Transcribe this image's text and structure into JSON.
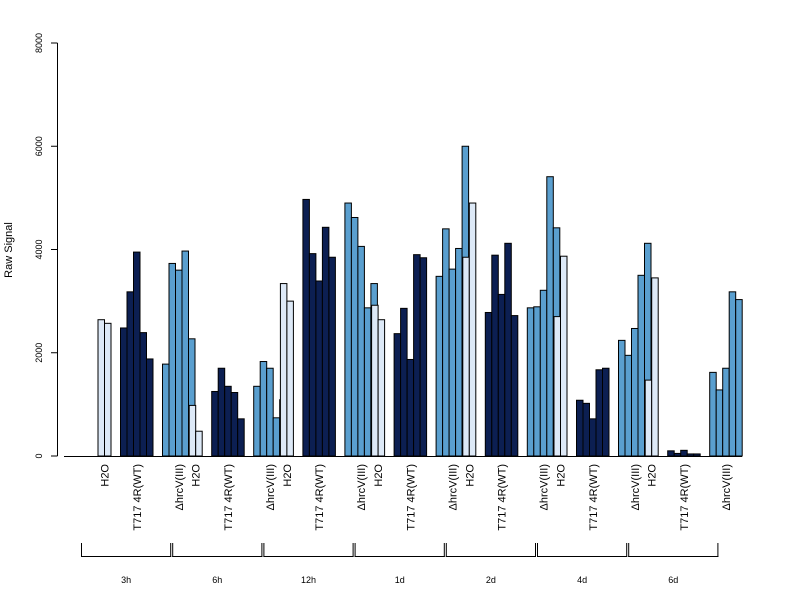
{
  "chart_data": {
    "type": "bar",
    "xlabel": "",
    "ylabel": "Raw Signal",
    "ylim": [
      0,
      8000
    ],
    "y_ticks": [
      0,
      2000,
      4000,
      6000,
      8000
    ],
    "y_tick_labels": [
      "0",
      "2000",
      "4000",
      "6000",
      "8000"
    ],
    "grid": false,
    "legend": "none",
    "treatment_labels": [
      "H2O",
      "T717 4R(WT)",
      "ΔhrcV(III)"
    ],
    "colors": {
      "H2O": "#dde9f7",
      "T717 4R(WT)": "#0c1f52",
      "ΔhrcV(III)": "#5a9fcf"
    },
    "timepoints": [
      {
        "label": "3h",
        "H2O": [
          2640,
          2570
        ],
        "T717 4R(WT)": [
          2480,
          3180,
          3950,
          2390,
          1880
        ],
        "ΔhrcV(III)": [
          1780,
          3730,
          3600,
          3970,
          2270
        ]
      },
      {
        "label": "6h",
        "H2O": [
          980,
          480
        ],
        "T717 4R(WT)": [
          1250,
          1700,
          1350,
          1230,
          720
        ],
        "ΔhrcV(III)": [
          1350,
          1830,
          1700,
          740,
          1090
        ]
      },
      {
        "label": "12h",
        "H2O": [
          3340,
          3000
        ],
        "T717 4R(WT)": [
          4970,
          3920,
          3390,
          4430,
          3850
        ],
        "ΔhrcV(III)": [
          4900,
          4620,
          4060,
          2870,
          3340
        ]
      },
      {
        "label": "1d",
        "H2O": [
          2920,
          2640
        ],
        "T717 4R(WT)": [
          2370,
          2860,
          1870,
          3900,
          3840
        ],
        "ΔhrcV(III)": [
          3480,
          4400,
          3620,
          4020,
          6000
        ]
      },
      {
        "label": "2d",
        "H2O": [
          3850,
          4900
        ],
        "T717 4R(WT)": [
          2780,
          3890,
          3130,
          4120,
          2720
        ],
        "ΔhrcV(III)": [
          2870,
          2890,
          3210,
          5410,
          4420
        ]
      },
      {
        "label": "4d",
        "H2O": [
          2700,
          3870
        ],
        "T717 4R(WT)": [
          1080,
          1020,
          720,
          1670,
          1700
        ],
        "ΔhrcV(III)": [
          2240,
          1950,
          2470,
          3500,
          4120
        ]
      },
      {
        "label": "6d",
        "H2O": [
          1470,
          3450
        ],
        "T717 4R(WT)": [
          100,
          50,
          110,
          40,
          40
        ],
        "ΔhrcV(III)": [
          1620,
          1280,
          1700,
          3180,
          3030
        ]
      }
    ]
  }
}
